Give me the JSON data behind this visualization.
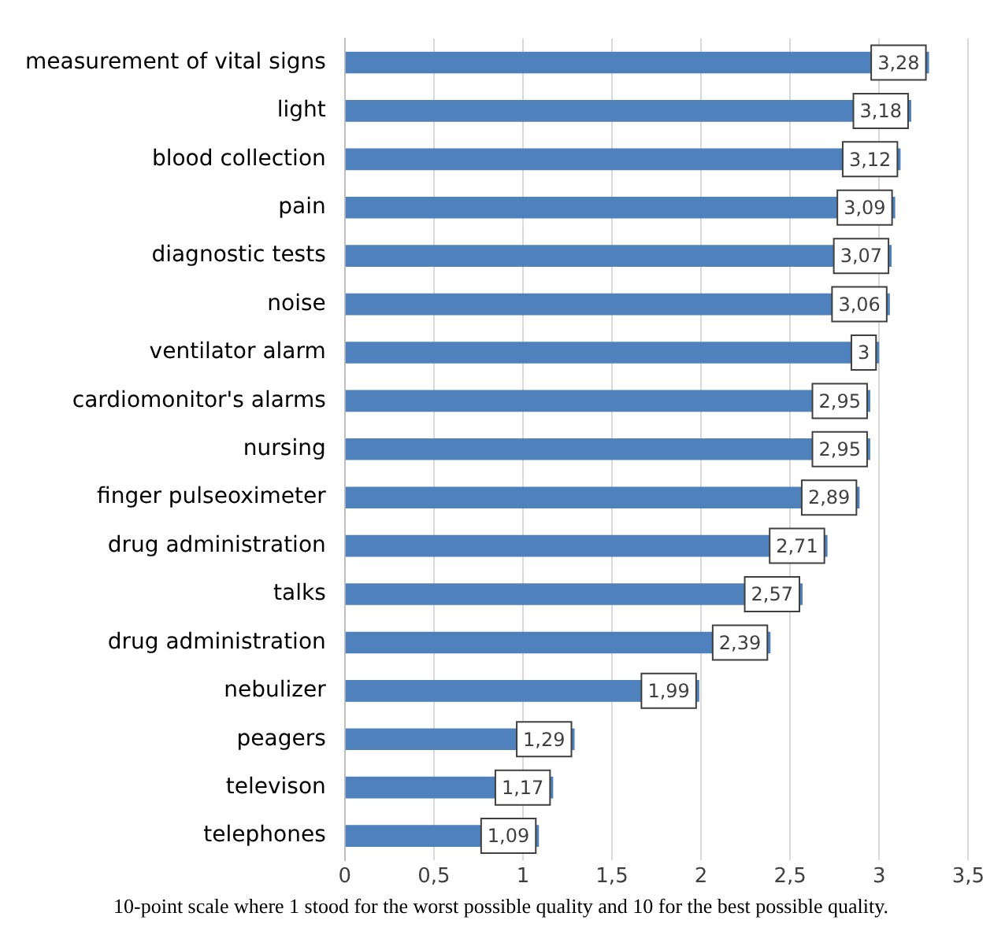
{
  "chart_data": {
    "type": "bar",
    "orientation": "horizontal",
    "categories": [
      "measurement of vital signs",
      "light",
      "blood collection",
      "pain",
      "diagnostic tests",
      "noise",
      "ventilator alarm",
      "cardiomonitor's alarms",
      "nursing",
      "finger pulseoximeter",
      "drug administration",
      "talks",
      "drug administration",
      "nebulizer",
      "peagers",
      "televison",
      "telephones"
    ],
    "values": [
      3.28,
      3.18,
      3.12,
      3.09,
      3.07,
      3.06,
      3,
      2.95,
      2.95,
      2.89,
      2.71,
      2.57,
      2.39,
      1.99,
      1.29,
      1.17,
      1.09
    ],
    "value_labels": [
      "3,28",
      "3,18",
      "3,12",
      "3,09",
      "3,07",
      "3,06",
      "3",
      "2,95",
      "2,95",
      "2,89",
      "2,71",
      "2,57",
      "2,39",
      "1,99",
      "1,29",
      "1,17",
      "1,09"
    ],
    "color": "#4f81bd",
    "xlim": [
      0,
      3.5
    ],
    "xticks": [
      0,
      {
        "value": 0.5,
        "label": "0,5"
      },
      1,
      {
        "value": 1.5,
        "label": "1,5"
      },
      2,
      {
        "value": 2.5,
        "label": "2,5"
      },
      3,
      {
        "value": 3.5,
        "label": "3,5"
      }
    ],
    "grid": "x",
    "legend": false,
    "annotations": [
      "10-point scale where 1 stood for the worst possible quality and 10 for the best possible quality."
    ]
  }
}
